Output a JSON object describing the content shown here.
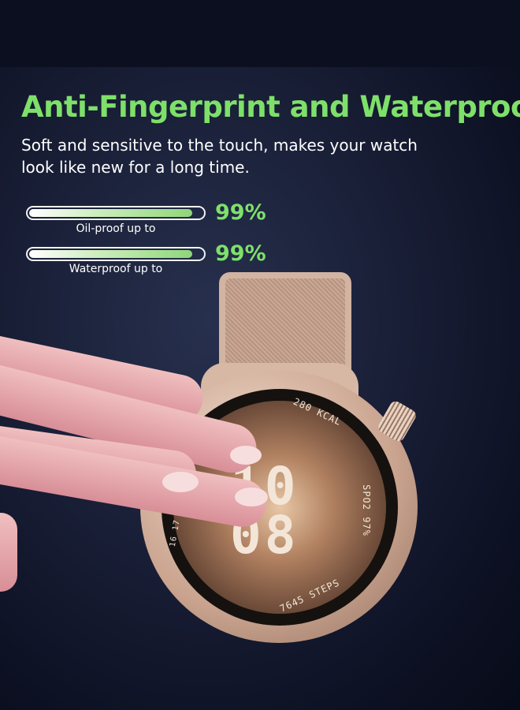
{
  "headline": "Anti-Fingerprint and Waterproof",
  "subtitle_line1": "Soft and sensitive to the touch, makes your watch",
  "subtitle_line2": "look like new for a long time.",
  "stats": [
    {
      "label": "Oil-proof up to",
      "value": "99%",
      "level": 99
    },
    {
      "label": "Waterproof up to",
      "value": "99%",
      "level": 99
    }
  ],
  "watch": {
    "hour": "10",
    "minute": "08",
    "calories": "280 KCAL",
    "spo2": "SPO2 97%",
    "steps": "7645 STEPS",
    "date_arc": "16 17 18"
  },
  "colors": {
    "accent": "#7ee06a",
    "background": "#1a2038"
  }
}
